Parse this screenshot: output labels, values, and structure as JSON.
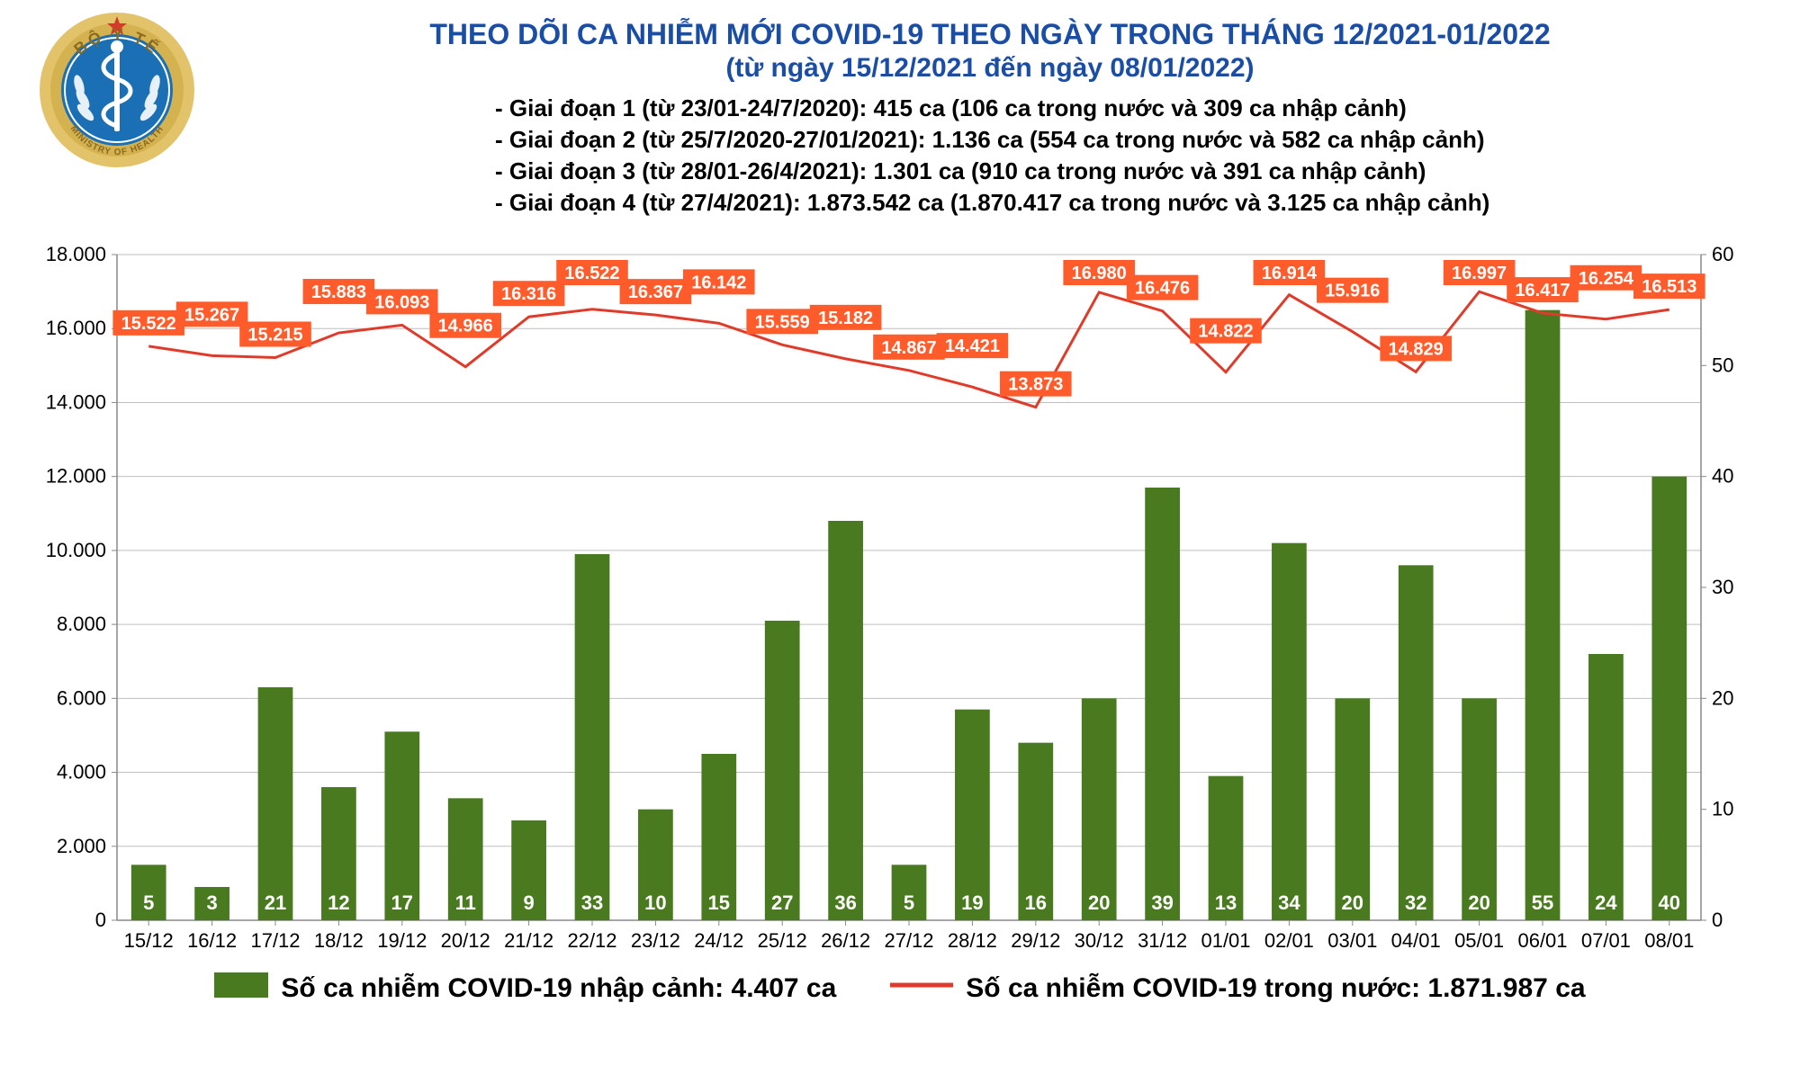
{
  "header": {
    "title": "THEO DÕI CA NHIỄM MỚI COVID-19 THEO NGÀY TRONG THÁNG 12/2021-01/2022",
    "subtitle": "(từ ngày 15/12/2021 đến ngày 08/01/2022)",
    "phases": [
      "- Giai đoạn 1 (từ 23/01-24/7/2020): 415 ca (106 ca trong nước và 309 ca nhập cảnh)",
      "- Giai đoạn 2 (từ 25/7/2020-27/01/2021): 1.136 ca (554 ca trong nước và 582 ca nhập cảnh)",
      "- Giai đoạn 3 (từ 28/01-26/4/2021): 1.301 ca (910 ca trong nước và 391 ca nhập cảnh)",
      "- Giai đoạn 4 (từ 27/4/2021): 1.873.542 ca (1.870.417 ca trong nước và 3.125 ca nhập cảnh)"
    ]
  },
  "legend": {
    "bars_label": "Số ca nhiễm COVID-19 nhập cảnh: 4.407 ca",
    "line_label": "Số ca nhiễm COVID-19 trong nước: 1.871.987 ca"
  },
  "chart": {
    "type": "bar+line",
    "categories": [
      "15/12",
      "16/12",
      "17/12",
      "18/12",
      "19/12",
      "20/12",
      "21/12",
      "22/12",
      "23/12",
      "24/12",
      "25/12",
      "26/12",
      "27/12",
      "28/12",
      "29/12",
      "30/12",
      "31/12",
      "01/01",
      "02/01",
      "03/01",
      "04/01",
      "05/01",
      "06/01",
      "07/01",
      "08/01"
    ],
    "bar_values": [
      5,
      3,
      21,
      12,
      17,
      11,
      9,
      33,
      10,
      15,
      27,
      36,
      5,
      19,
      16,
      20,
      39,
      13,
      34,
      20,
      32,
      20,
      55,
      24,
      40
    ],
    "bar_display_heights": [
      1500,
      900,
      6300,
      3600,
      5100,
      3300,
      2700,
      9900,
      3000,
      4500,
      8100,
      10800,
      1500,
      5700,
      4800,
      6000,
      11700,
      3900,
      10200,
      6000,
      9600,
      6000,
      16500,
      7200,
      12000
    ],
    "line_values": [
      15522,
      15267,
      15215,
      15883,
      16093,
      14966,
      16316,
      16522,
      16367,
      16142,
      15559,
      15182,
      14867,
      14421,
      13873,
      16980,
      16476,
      14822,
      16914,
      15916,
      14829,
      16997,
      16417,
      16254,
      16513
    ],
    "line_labels": [
      "15.522",
      "15.267",
      "15.215",
      "15.883",
      "16.093",
      "14.966",
      "16.316",
      "16.522",
      "16.367",
      "16.142",
      "15.559",
      "15.182",
      "14.867",
      "14.421",
      "13.873",
      "16.980",
      "16.476",
      "14.822",
      "16.914",
      "15.916",
      "14.829",
      "16.997",
      "16.417",
      "16.254",
      "16.513"
    ],
    "left_axis": {
      "min": 0,
      "max": 18000,
      "step": 2000,
      "format_thousand": true
    },
    "right_axis": {
      "min": 0,
      "max": 60,
      "step": 10
    },
    "bar_color": "#4a7a1f",
    "bar_label_color": "#ffffff",
    "line_color": "#e03b2a",
    "line_label_bg": "#ff5b2b",
    "line_label_text": "#ffffff",
    "grid_color": "#bfbfbf",
    "axis_color": "#888888",
    "background_color": "#ffffff",
    "category_fontsize": 22,
    "axis_tick_fontsize": 22,
    "line_label_fontsize": 20,
    "bar_label_fontsize": 22,
    "bar_width_ratio": 0.55,
    "line_width": 3
  },
  "logo": {
    "ring_outer": "#e2c36a",
    "ring_inner": "#d4b24f",
    "bg": "#1a6fb5",
    "staff": "#ffffff",
    "text_top": "BỘ Y TẾ",
    "text_bottom": "MINISTRY OF HEALTH"
  }
}
